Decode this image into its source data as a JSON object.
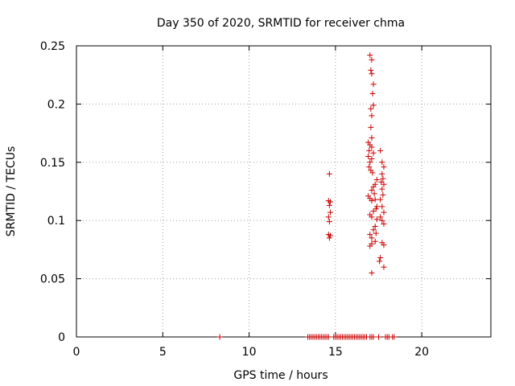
{
  "chart_data": {
    "type": "scatter",
    "title": "Day 350 of 2020, SRMTID for receiver chma",
    "xlabel": "GPS time / hours",
    "ylabel": "SRMTID / TECUs",
    "xlim": [
      0,
      24
    ],
    "ylim": [
      0,
      0.25
    ],
    "xticks": [
      0,
      5,
      10,
      15,
      20
    ],
    "xtick_labels": [
      "0",
      "5",
      "10",
      "15",
      "20"
    ],
    "yticks": [
      0,
      0.05,
      0.1,
      0.15,
      0.2,
      0.25
    ],
    "ytick_labels": [
      "0",
      "0.05",
      "0.1",
      "0.15",
      "0.2",
      "0.25"
    ],
    "grid": true,
    "color": "#cc0000",
    "points": [
      [
        8.3,
        0
      ],
      [
        13.4,
        0
      ],
      [
        13.5,
        0
      ],
      [
        13.6,
        0
      ],
      [
        13.7,
        0
      ],
      [
        13.8,
        0
      ],
      [
        13.9,
        0
      ],
      [
        14.0,
        0
      ],
      [
        14.1,
        0
      ],
      [
        14.2,
        0
      ],
      [
        14.3,
        0
      ],
      [
        14.4,
        0
      ],
      [
        14.5,
        0
      ],
      [
        14.6,
        0
      ],
      [
        14.9,
        0
      ],
      [
        15.0,
        0
      ],
      [
        15.1,
        0
      ],
      [
        15.2,
        0
      ],
      [
        15.3,
        0
      ],
      [
        15.4,
        0
      ],
      [
        15.5,
        0
      ],
      [
        15.6,
        0
      ],
      [
        15.7,
        0
      ],
      [
        15.8,
        0
      ],
      [
        15.9,
        0
      ],
      [
        16.0,
        0
      ],
      [
        16.1,
        0
      ],
      [
        16.2,
        0
      ],
      [
        16.3,
        0
      ],
      [
        16.4,
        0
      ],
      [
        16.5,
        0
      ],
      [
        16.6,
        0
      ],
      [
        16.7,
        0
      ],
      [
        16.8,
        0
      ],
      [
        17.0,
        0
      ],
      [
        17.1,
        0
      ],
      [
        17.2,
        0
      ],
      [
        17.5,
        0
      ],
      [
        17.9,
        0
      ],
      [
        18.0,
        0
      ],
      [
        18.1,
        0
      ],
      [
        18.3,
        0
      ],
      [
        18.4,
        0
      ],
      [
        14.65,
        0.14
      ],
      [
        14.6,
        0.117
      ],
      [
        14.7,
        0.116
      ],
      [
        14.65,
        0.113
      ],
      [
        14.7,
        0.107
      ],
      [
        14.6,
        0.103
      ],
      [
        14.65,
        0.099
      ],
      [
        14.6,
        0.088
      ],
      [
        14.7,
        0.087
      ],
      [
        14.65,
        0.085
      ],
      [
        17.0,
        0.242
      ],
      [
        17.1,
        0.238
      ],
      [
        17.05,
        0.229
      ],
      [
        17.1,
        0.226
      ],
      [
        17.2,
        0.217
      ],
      [
        17.15,
        0.209
      ],
      [
        17.2,
        0.199
      ],
      [
        17.05,
        0.196
      ],
      [
        17.1,
        0.19
      ],
      [
        17.05,
        0.18
      ],
      [
        17.1,
        0.171
      ],
      [
        16.9,
        0.167
      ],
      [
        17.0,
        0.165
      ],
      [
        17.1,
        0.163
      ],
      [
        16.95,
        0.16
      ],
      [
        17.2,
        0.158
      ],
      [
        16.9,
        0.155
      ],
      [
        17.1,
        0.153
      ],
      [
        17.0,
        0.15
      ],
      [
        17.6,
        0.16
      ],
      [
        17.7,
        0.15
      ],
      [
        16.95,
        0.146
      ],
      [
        17.05,
        0.143
      ],
      [
        17.15,
        0.141
      ],
      [
        17.8,
        0.146
      ],
      [
        17.7,
        0.14
      ],
      [
        17.75,
        0.136
      ],
      [
        17.4,
        0.135
      ],
      [
        17.3,
        0.131
      ],
      [
        17.65,
        0.133
      ],
      [
        17.8,
        0.131
      ],
      [
        17.2,
        0.129
      ],
      [
        17.1,
        0.126
      ],
      [
        17.25,
        0.123
      ],
      [
        17.7,
        0.127
      ],
      [
        17.75,
        0.122
      ],
      [
        16.9,
        0.121
      ],
      [
        17.0,
        0.119
      ],
      [
        17.1,
        0.117
      ],
      [
        17.3,
        0.118
      ],
      [
        17.6,
        0.118
      ],
      [
        17.4,
        0.112
      ],
      [
        17.35,
        0.11
      ],
      [
        17.2,
        0.108
      ],
      [
        17.7,
        0.112
      ],
      [
        17.8,
        0.107
      ],
      [
        17.0,
        0.105
      ],
      [
        17.1,
        0.103
      ],
      [
        17.4,
        0.101
      ],
      [
        17.6,
        0.103
      ],
      [
        17.7,
        0.1
      ],
      [
        17.8,
        0.097
      ],
      [
        17.3,
        0.095
      ],
      [
        17.2,
        0.092
      ],
      [
        17.35,
        0.089
      ],
      [
        17.0,
        0.088
      ],
      [
        17.1,
        0.085
      ],
      [
        17.3,
        0.082
      ],
      [
        17.1,
        0.08
      ],
      [
        17.0,
        0.078
      ],
      [
        17.7,
        0.081
      ],
      [
        17.8,
        0.079
      ],
      [
        17.6,
        0.068
      ],
      [
        17.55,
        0.065
      ],
      [
        17.8,
        0.06
      ],
      [
        17.1,
        0.055
      ]
    ]
  }
}
